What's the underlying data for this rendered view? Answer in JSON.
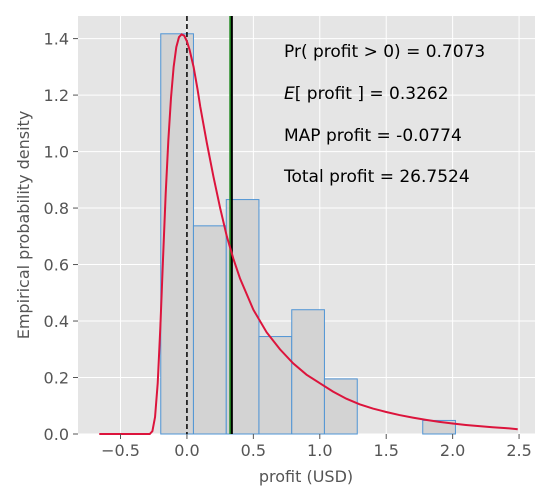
{
  "chart_data": {
    "type": "bar",
    "xlabel": "profit (USD)",
    "ylabel": "Empirical probability density",
    "xlim": [
      -0.82,
      2.62
    ],
    "ylim": [
      0,
      1.48
    ],
    "x_ticks": [
      -0.5,
      0.0,
      0.5,
      1.0,
      1.5,
      2.0,
      2.5
    ],
    "x_tick_labels": [
      "−0.5",
      "0.0",
      "0.5",
      "1.0",
      "1.5",
      "2.0",
      "2.5"
    ],
    "y_ticks": [
      0.0,
      0.2,
      0.4,
      0.6,
      0.8,
      1.0,
      1.2,
      1.4
    ],
    "y_tick_labels": [
      "0.0",
      "0.2",
      "0.4",
      "0.6",
      "0.8",
      "1.0",
      "1.2",
      "1.4"
    ],
    "grid": true,
    "histogram": {
      "bins": [
        {
          "x0": -0.197,
          "x1": 0.049,
          "density": 1.417
        },
        {
          "x0": 0.049,
          "x1": 0.296,
          "density": 0.737
        },
        {
          "x0": 0.296,
          "x1": 0.542,
          "density": 0.83
        },
        {
          "x0": 0.542,
          "x1": 0.789,
          "density": 0.345
        },
        {
          "x0": 0.789,
          "x1": 1.035,
          "density": 0.44
        },
        {
          "x0": 1.035,
          "x1": 1.282,
          "density": 0.195
        },
        {
          "x0": 1.282,
          "x1": 1.528,
          "density": 0
        },
        {
          "x0": 1.528,
          "x1": 1.775,
          "density": 0
        },
        {
          "x0": 1.775,
          "x1": 2.021,
          "density": 0.048
        }
      ],
      "fill": "#d3d3d3",
      "edge": "#4f94d4"
    },
    "density_curve": {
      "x": [
        -0.66,
        -0.4,
        -0.3,
        -0.28,
        -0.26,
        -0.24,
        -0.22,
        -0.2,
        -0.18,
        -0.16,
        -0.14,
        -0.12,
        -0.1,
        -0.08,
        -0.06,
        -0.04,
        -0.02,
        0.0,
        0.02,
        0.05,
        0.08,
        0.1,
        0.15,
        0.2,
        0.25,
        0.3,
        0.35,
        0.4,
        0.5,
        0.6,
        0.7,
        0.8,
        0.9,
        1.0,
        1.1,
        1.2,
        1.3,
        1.4,
        1.5,
        1.6,
        1.7,
        1.8,
        1.9,
        2.0,
        2.1,
        2.2,
        2.3,
        2.4,
        2.49
      ],
      "y": [
        0.0,
        0.0,
        0.0,
        0.0,
        0.01,
        0.06,
        0.18,
        0.38,
        0.62,
        0.85,
        1.04,
        1.19,
        1.3,
        1.37,
        1.405,
        1.415,
        1.41,
        1.39,
        1.36,
        1.3,
        1.22,
        1.16,
        1.03,
        0.91,
        0.8,
        0.7,
        0.62,
        0.55,
        0.44,
        0.36,
        0.3,
        0.25,
        0.21,
        0.18,
        0.15,
        0.125,
        0.105,
        0.09,
        0.078,
        0.067,
        0.058,
        0.05,
        0.043,
        0.037,
        0.032,
        0.028,
        0.024,
        0.021,
        0.017
      ],
      "color": "#dc143c"
    },
    "vertical_lines": [
      {
        "x": 0.0,
        "color": "#000000",
        "style": "dashed"
      },
      {
        "x": 0.3262,
        "color": "#228b22",
        "style": "solid"
      },
      {
        "x": 0.3262,
        "color": "#000000",
        "style": "solid"
      }
    ],
    "annotations": {
      "pr_label": "Pr( profit  > 0) =  0.7073",
      "e_symbol": "E",
      "e_rest": "[ profit  ] =  0.3262",
      "map_label": "MAP profit  =  -0.0774",
      "total_label": "Total profit  =  26.7524"
    }
  }
}
